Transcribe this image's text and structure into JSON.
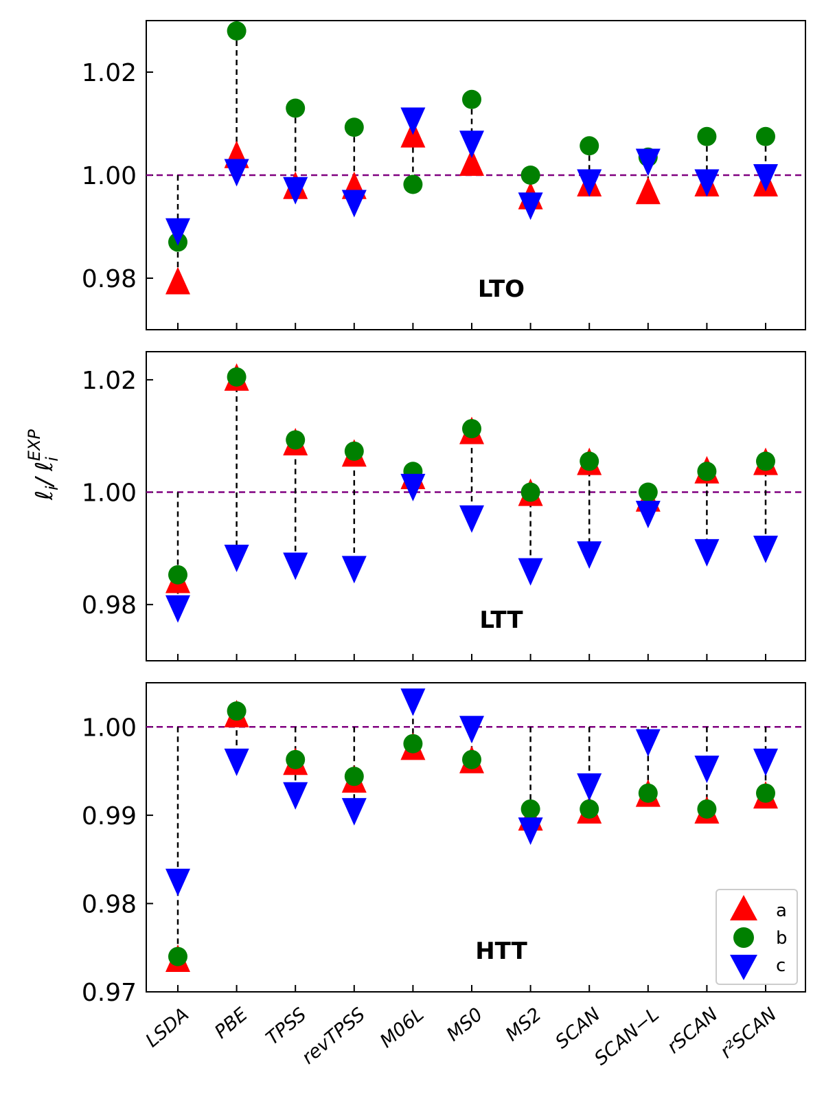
{
  "chart_data": {
    "type": "scatter",
    "categories": [
      "LSDA",
      "PBE",
      "TPSS",
      "revTPSS",
      "M06L",
      "MS0",
      "MS2",
      "SCAN",
      "SCAN−L",
      "rSCAN",
      "r²SCAN"
    ],
    "ylabel_main": "ℓ",
    "ylabel_sub": "i",
    "ylabel_slash": "/",
    "ylabel_sup": "EXP",
    "reference_line": 1.0,
    "legend": {
      "position": "bottom-right",
      "entries": [
        "a",
        "b",
        "c"
      ]
    },
    "colors": {
      "a": "#ff0000",
      "b": "#008000",
      "c": "#0000ff",
      "reference": "#800080"
    },
    "panels": [
      {
        "label": "LTO",
        "ylim": [
          0.97,
          1.03
        ],
        "yticks": [
          0.98,
          1.0,
          1.02
        ],
        "ytick_labels": [
          "0.98",
          "1.00",
          "1.02"
        ],
        "series": [
          {
            "name": "a",
            "marker": "triangle-up",
            "values": [
              0.979,
              1.0035,
              0.9975,
              0.9975,
              1.0075,
              1.002,
              0.9955,
              0.998,
              0.9965,
              0.998,
              0.998
            ]
          },
          {
            "name": "b",
            "marker": "circle",
            "values": [
              0.987,
              1.028,
              1.013,
              1.0093,
              0.9982,
              1.0147,
              1.0,
              1.0057,
              1.0035,
              1.0075,
              1.0075
            ]
          },
          {
            "name": "c",
            "marker": "triangle-down",
            "values": [
              0.9895,
              1.001,
              0.9975,
              0.995,
              1.011,
              1.0065,
              0.9945,
              0.999,
              1.003,
              0.999,
              1.0
            ]
          }
        ]
      },
      {
        "label": "LTT",
        "ylim": [
          0.97,
          1.025
        ],
        "yticks": [
          0.98,
          1.0,
          1.02
        ],
        "ytick_labels": [
          "0.98",
          "1.00",
          "1.02"
        ],
        "series": [
          {
            "name": "a",
            "marker": "triangle-up",
            "values": [
              0.984,
              1.02,
              1.0085,
              1.0065,
              1.0025,
              1.0105,
              0.9995,
              1.005,
              0.9985,
              1.0035,
              1.005
            ]
          },
          {
            "name": "b",
            "marker": "circle",
            "values": [
              0.9853,
              1.0205,
              1.0093,
              1.0073,
              1.0037,
              1.0113,
              1.0,
              1.0055,
              1.0,
              1.0037,
              1.0055
            ]
          },
          {
            "name": "c",
            "marker": "triangle-down",
            "values": [
              0.9797,
              0.9887,
              0.9873,
              0.9867,
              1.0013,
              0.9957,
              0.9863,
              0.9893,
              0.9965,
              0.9897,
              0.9903
            ]
          }
        ]
      },
      {
        "label": "HTT",
        "ylim": [
          0.97,
          1.005
        ],
        "yticks": [
          0.97,
          0.98,
          0.99,
          1.0
        ],
        "ytick_labels": [
          "0.97",
          "0.98",
          "0.99",
          "1.00"
        ],
        "series": [
          {
            "name": "a",
            "marker": "triangle-up",
            "values": [
              0.9735,
              1.0012,
              0.9958,
              0.9938,
              0.9975,
              0.996,
              0.9895,
              0.9903,
              0.9922,
              0.9903,
              0.992
            ]
          },
          {
            "name": "b",
            "marker": "circle",
            "values": [
              0.974,
              1.0018,
              0.9963,
              0.9944,
              0.9981,
              0.9963,
              0.9907,
              0.9907,
              0.9925,
              0.9907,
              0.9925
            ]
          },
          {
            "name": "c",
            "marker": "triangle-down",
            "values": [
              0.9827,
              0.9963,
              0.9925,
              0.9907,
              1.0031,
              1.0,
              0.9885,
              0.9935,
              0.9985,
              0.9955,
              0.9963
            ]
          }
        ]
      }
    ]
  }
}
